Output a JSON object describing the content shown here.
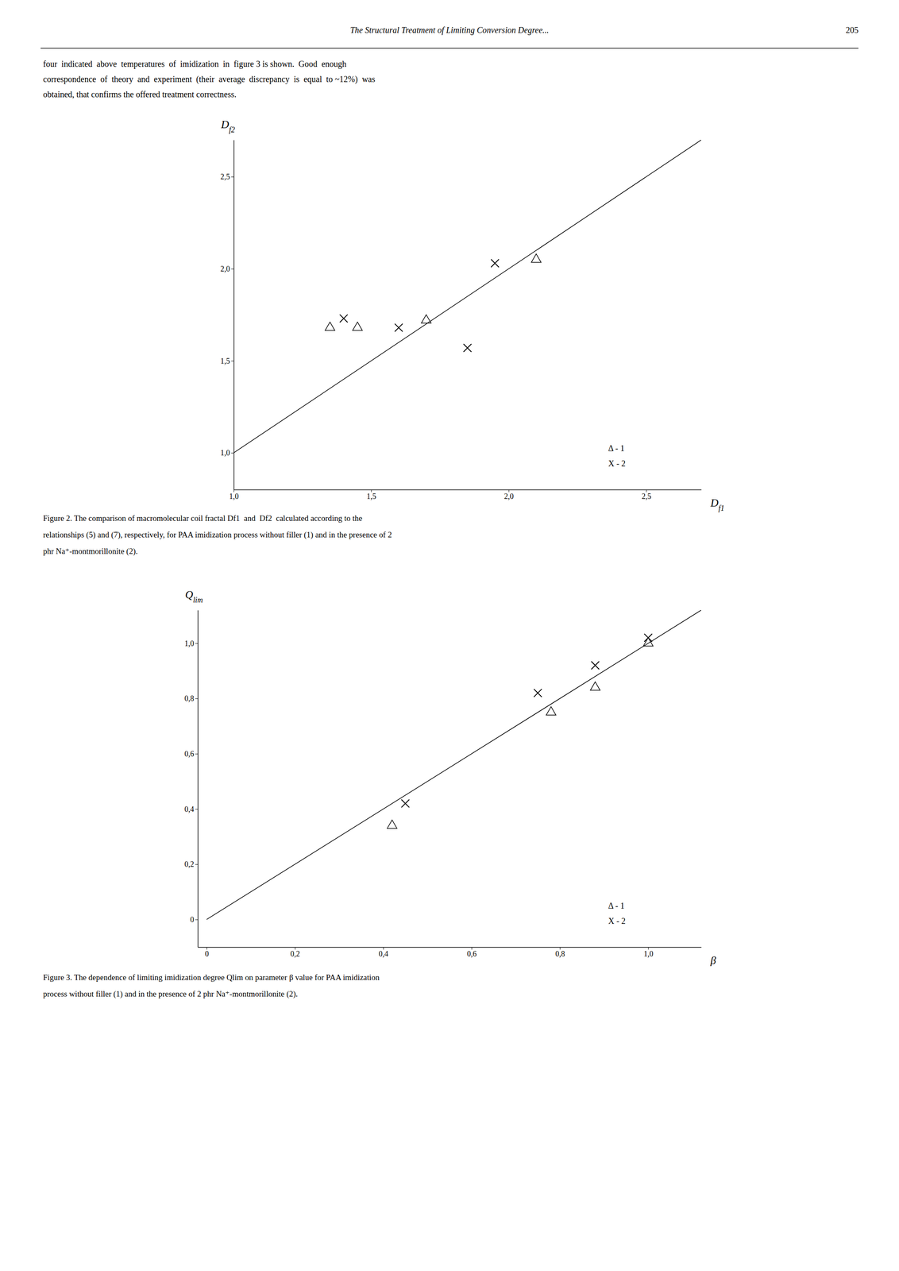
{
  "page": {
    "header": "The Structural Treatment of Limiting Conversion Degree...",
    "page_number": "205",
    "paragraph": [
      "four  indicated  above  temperatures  of  imidization  in  figure 3 is shown.  Good  enough",
      "correspondence  of  theory  and  experiment  (their  average  discrepancy  is  equal  to ~12%)  was",
      "obtained, that confirms the offered treatment correctness."
    ]
  },
  "chart_data": [
    {
      "type": "scatter",
      "x_label": "Df1",
      "y_label": "Df2",
      "caption": [
        "Figure 2. The comparison of macromolecular coil fractal Df1  and  Df2  calculated according to the",
        "relationships (5) and (7), respectively, for PAA imidization process without filler (1) and in the presence of 2",
        "phr Na⁺-montmorillonite (2)."
      ],
      "xlim": [
        1.0,
        2.7
      ],
      "ylim": [
        0.8,
        2.7
      ],
      "xticks": [
        {
          "value": 1.0,
          "label": "1,0"
        },
        {
          "value": 1.5,
          "label": "1,5"
        },
        {
          "value": 2.0,
          "label": "2,0"
        },
        {
          "value": 2.5,
          "label": "2,5"
        }
      ],
      "yticks": [
        {
          "value": 1.0,
          "label": "1,0"
        },
        {
          "value": 1.5,
          "label": "1,5"
        },
        {
          "value": 2.0,
          "label": "2,0"
        },
        {
          "value": 2.5,
          "label": "2,5"
        }
      ],
      "grid": false,
      "legend": "lower right",
      "series": [
        {
          "type": "line",
          "color": "#000000",
          "line_style": "solid",
          "x": [
            1.0,
            2.7
          ],
          "values": [
            1.0,
            2.7
          ]
        },
        {
          "name": "Δ - 1",
          "type": "scatter",
          "marker": "triangle-open",
          "color": "#000000",
          "x": [
            1.35,
            1.45,
            1.7,
            2.1
          ],
          "values": [
            1.68,
            1.68,
            1.72,
            2.05
          ]
        },
        {
          "name": "X - 2",
          "type": "scatter",
          "marker": "x",
          "color": "#000000",
          "x": [
            1.4,
            1.6,
            1.85,
            1.95
          ],
          "values": [
            1.73,
            1.68,
            1.57,
            2.03
          ]
        }
      ]
    },
    {
      "type": "scatter",
      "x_label": "β",
      "y_label": "Qlim",
      "caption": [
        "Figure 3. The dependence of limiting imidization degree Qlim on parameter β value for PAA imidization",
        "process without filler (1) and in the presence of 2 phr Na⁺-montmorillonite (2)."
      ],
      "xlim": [
        -0.02,
        1.12
      ],
      "ylim": [
        -0.1,
        1.12
      ],
      "xticks": [
        0,
        {
          "value": 0.2,
          "label": "0,2"
        },
        {
          "value": 0.4,
          "label": "0,4"
        },
        {
          "value": 0.6,
          "label": "0,6"
        },
        {
          "value": 0.8,
          "label": "0,8"
        },
        {
          "value": 1.0,
          "label": "1,0"
        }
      ],
      "yticks": [
        0,
        {
          "value": 0.2,
          "label": "0,2"
        },
        {
          "value": 0.4,
          "label": "0,4"
        },
        {
          "value": 0.6,
          "label": "0,6"
        },
        {
          "value": 0.8,
          "label": "0,8"
        },
        {
          "value": 1.0,
          "label": "1,0"
        }
      ],
      "grid": false,
      "legend": "lower right",
      "series": [
        {
          "type": "line",
          "color": "#000000",
          "line_style": "solid",
          "x": [
            0.0,
            1.12
          ],
          "values": [
            0.0,
            1.12
          ]
        },
        {
          "name": "Δ - 1",
          "type": "scatter",
          "marker": "triangle-open",
          "color": "#000000",
          "x": [
            0.42,
            0.78,
            0.88,
            1.0
          ],
          "values": [
            0.34,
            0.75,
            0.84,
            1.0
          ]
        },
        {
          "name": "X - 2",
          "type": "scatter",
          "marker": "x",
          "color": "#000000",
          "x": [
            0.45,
            0.75,
            0.88,
            1.0
          ],
          "values": [
            0.42,
            0.82,
            0.92,
            1.02
          ]
        }
      ]
    }
  ]
}
